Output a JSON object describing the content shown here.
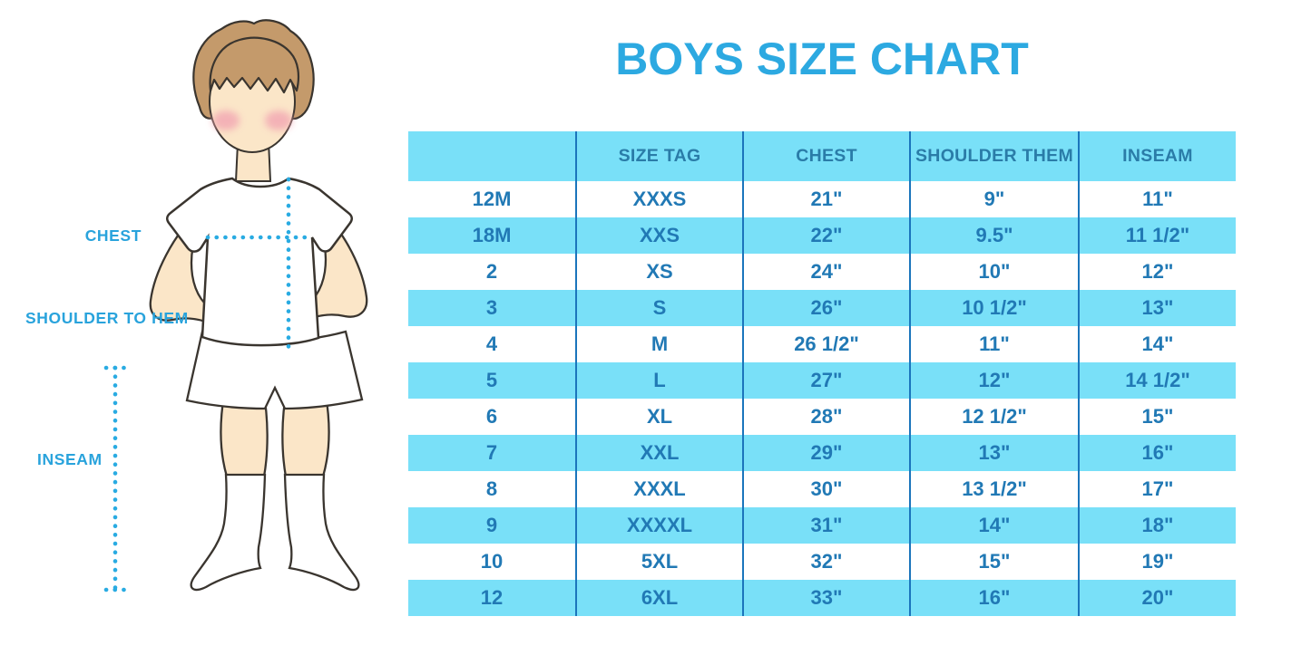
{
  "title": "BOYS SIZE CHART",
  "figure": {
    "description": "illustration of a boy in white t-shirt, shorts and knee socks with measurement guide lines",
    "labels": {
      "chest": "CHEST",
      "shoulder_to_hem": "SHOULDER TO HEM",
      "inseam": "INSEAM"
    }
  },
  "chart_data": {
    "type": "table",
    "title": "BOYS SIZE CHART",
    "columns": [
      "",
      "SIZE TAG",
      "CHEST",
      "SHOULDER THEM",
      "INSEAM"
    ],
    "rows": [
      [
        "12M",
        "XXXS",
        "21\"",
        "9\"",
        "11\""
      ],
      [
        "18M",
        "XXS",
        "22\"",
        "9.5\"",
        "11 1/2\""
      ],
      [
        "2",
        "XS",
        "24\"",
        "10\"",
        "12\""
      ],
      [
        "3",
        "S",
        "26\"",
        "10 1/2\"",
        "13\""
      ],
      [
        "4",
        "M",
        "26 1/2\"",
        "11\"",
        "14\""
      ],
      [
        "5",
        "L",
        "27\"",
        "12\"",
        "14 1/2\""
      ],
      [
        "6",
        "XL",
        "28\"",
        "12 1/2\"",
        "15\""
      ],
      [
        "7",
        "XXL",
        "29\"",
        "13\"",
        "16\""
      ],
      [
        "8",
        "XXXL",
        "30\"",
        "13 1/2\"",
        "17\""
      ],
      [
        "9",
        "XXXXL",
        "31\"",
        "14\"",
        "18\""
      ],
      [
        "10",
        "5XL",
        "32\"",
        "15\"",
        "19\""
      ],
      [
        "12",
        "6XL",
        "33\"",
        "16\"",
        "20\""
      ]
    ],
    "row_striping": [
      "white",
      "light-blue"
    ],
    "grid": "vertical-dividers-only",
    "legend_position": "none"
  },
  "colors": {
    "title_blue": "#2CA9E1",
    "label_blue": "#29A3DC",
    "band_light_blue": "#79E0F8",
    "divider_blue": "#1B75BC",
    "header_text_blue": "#2A7CA8",
    "cell_text_blue": "#2179B5",
    "dotted_line_blue": "#29ABE2",
    "skin": "#FBE6C8",
    "hair": "#C49A6B",
    "blush": "#F2A6B2",
    "outline": "#3A352F"
  }
}
